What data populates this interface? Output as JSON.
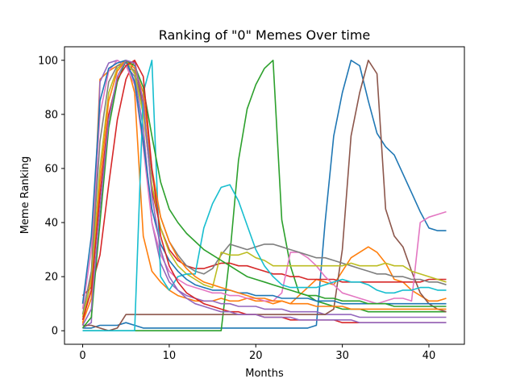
{
  "chart_data": {
    "type": "line",
    "title": "Ranking of \"0\" Memes Over time",
    "xlabel": "Months",
    "ylabel": "Meme Ranking",
    "xlim": [
      -2.1,
      44.1
    ],
    "ylim": [
      -5,
      105
    ],
    "xticks": [
      0,
      10,
      20,
      30,
      40
    ],
    "yticks": [
      0,
      20,
      40,
      60,
      80,
      100
    ],
    "grid": false,
    "legend": "none",
    "series_colors": [
      "#1f77b4",
      "#ff7f0e",
      "#2ca02c",
      "#d62728",
      "#9467bd",
      "#8c564b",
      "#e377c2",
      "#7f7f7f",
      "#bcbd22",
      "#17becf"
    ],
    "x": [
      0,
      1,
      2,
      3,
      4,
      5,
      6,
      7,
      8,
      9,
      10,
      11,
      12,
      13,
      14,
      15,
      16,
      17,
      18,
      19,
      20,
      21,
      22,
      23,
      24,
      25,
      26,
      27,
      28,
      29,
      30,
      31,
      32,
      33,
      34,
      35,
      36,
      37,
      38,
      39,
      40,
      41,
      42
    ],
    "series": [
      {
        "values": [
          1,
          1,
          2,
          2,
          2,
          3,
          2,
          1,
          1,
          1,
          1,
          1,
          1,
          1,
          1,
          1,
          1,
          1,
          1,
          1,
          1,
          1,
          1,
          1,
          1,
          1,
          1,
          2,
          40,
          72,
          88,
          100,
          98,
          85,
          73,
          68,
          65,
          58,
          51,
          44,
          38,
          37,
          37
        ]
      },
      {
        "values": [
          2,
          20,
          93,
          96,
          98,
          100,
          88,
          35,
          22,
          18,
          15,
          13,
          12,
          11,
          11,
          11,
          12,
          11,
          11,
          12,
          11,
          11,
          10,
          11,
          10,
          13,
          16,
          19,
          18,
          17,
          22,
          27,
          29,
          31,
          29,
          25,
          19,
          18,
          15,
          13,
          11,
          11,
          12
        ]
      },
      {
        "values": [
          0,
          0,
          0,
          0,
          0,
          0,
          0,
          0,
          0,
          0,
          0,
          0,
          0,
          0,
          0,
          0,
          0,
          28,
          63,
          82,
          91,
          97,
          100,
          41,
          24,
          14,
          13,
          11,
          10,
          9,
          8,
          8,
          8,
          7,
          7,
          7,
          7,
          7,
          7,
          7,
          7,
          7,
          7
        ]
      },
      {
        "values": [
          13,
          16,
          28,
          54,
          78,
          93,
          100,
          82,
          52,
          38,
          30,
          26,
          24,
          23,
          23,
          24,
          25,
          25,
          24,
          24,
          23,
          22,
          21,
          21,
          20,
          20,
          19,
          19,
          19,
          19,
          18,
          18,
          18,
          18,
          18,
          18,
          18,
          18,
          18,
          18,
          19,
          19,
          19
        ]
      },
      {
        "values": [
          1,
          3,
          92,
          99,
          100,
          98,
          94,
          75,
          40,
          25,
          18,
          15,
          13,
          12,
          11,
          11,
          10,
          10,
          9,
          9,
          9,
          8,
          8,
          8,
          7,
          7,
          7,
          7,
          6,
          6,
          6,
          6,
          5,
          5,
          5,
          5,
          5,
          5,
          5,
          5,
          5,
          5,
          5
        ]
      },
      {
        "values": [
          2,
          2,
          1,
          0,
          1,
          6,
          6,
          6,
          6,
          6,
          6,
          6,
          6,
          6,
          6,
          6,
          6,
          6,
          6,
          6,
          6,
          6,
          6,
          6,
          6,
          6,
          6,
          6,
          6,
          8,
          30,
          72,
          88,
          100,
          95,
          45,
          35,
          31,
          22,
          14,
          10,
          8,
          7
        ]
      },
      {
        "values": [
          8,
          30,
          80,
          96,
          100,
          98,
          91,
          68,
          40,
          28,
          22,
          19,
          17,
          16,
          15,
          14,
          14,
          13,
          13,
          12,
          12,
          11,
          11,
          14,
          29,
          29,
          27,
          24,
          20,
          17,
          14,
          13,
          12,
          11,
          10,
          11,
          12,
          12,
          11,
          40,
          42,
          43,
          44
        ]
      },
      {
        "values": [
          6,
          22,
          70,
          92,
          98,
          99,
          96,
          82,
          58,
          42,
          33,
          28,
          24,
          22,
          21,
          23,
          28,
          32,
          31,
          30,
          31,
          32,
          32,
          31,
          30,
          29,
          28,
          27,
          27,
          26,
          25,
          24,
          23,
          22,
          21,
          21,
          20,
          20,
          19,
          19,
          18,
          18,
          17
        ]
      },
      {
        "values": [
          5,
          18,
          60,
          88,
          97,
          100,
          95,
          80,
          54,
          38,
          29,
          24,
          21,
          19,
          17,
          16,
          29,
          28,
          28,
          29,
          27,
          26,
          24,
          24,
          24,
          24,
          24,
          24,
          24,
          24,
          24,
          25,
          24,
          24,
          24,
          25,
          24,
          24,
          22,
          21,
          20,
          19,
          18
        ]
      },
      {
        "values": [
          0,
          0,
          0,
          0,
          0,
          0,
          0,
          88,
          100,
          20,
          15,
          20,
          21,
          21,
          38,
          47,
          53,
          54,
          48,
          39,
          30,
          24,
          20,
          17,
          16,
          16,
          16,
          16,
          17,
          18,
          19,
          18,
          18,
          17,
          15,
          14,
          14,
          15,
          15,
          16,
          16,
          15,
          15
        ]
      },
      {
        "values": [
          10,
          35,
          85,
          97,
          99,
          100,
          92,
          70,
          45,
          32,
          26,
          22,
          19,
          17,
          16,
          15,
          15,
          15,
          14,
          14,
          13,
          13,
          13,
          12,
          12,
          12,
          12,
          11,
          11,
          11,
          10,
          10,
          10,
          10,
          10,
          10,
          10,
          10,
          10,
          10,
          10,
          10,
          10
        ]
      },
      {
        "values": [
          3,
          12,
          55,
          85,
          96,
          100,
          97,
          88,
          60,
          42,
          33,
          27,
          23,
          20,
          18,
          17,
          16,
          15,
          14,
          13,
          12,
          12,
          11,
          11,
          10,
          10,
          10,
          9,
          9,
          9,
          9,
          8,
          8,
          8,
          8,
          8,
          8,
          8,
          8,
          8,
          8,
          8,
          8
        ]
      },
      {
        "values": [
          1,
          5,
          40,
          75,
          92,
          100,
          98,
          90,
          72,
          55,
          45,
          40,
          36,
          33,
          30,
          28,
          26,
          24,
          22,
          20,
          19,
          18,
          17,
          16,
          15,
          14,
          13,
          13,
          12,
          12,
          11,
          11,
          11,
          10,
          10,
          10,
          9,
          9,
          9,
          9,
          9,
          9,
          9
        ]
      },
      {
        "values": [
          4,
          15,
          50,
          80,
          93,
          98,
          100,
          94,
          60,
          35,
          24,
          18,
          14,
          12,
          10,
          9,
          8,
          7,
          7,
          6,
          6,
          5,
          5,
          5,
          4,
          4,
          4,
          4,
          4,
          4,
          3,
          3,
          3,
          3,
          3,
          3,
          3,
          3,
          3,
          3,
          3,
          3,
          3
        ]
      },
      {
        "values": [
          2,
          8,
          45,
          78,
          94,
          100,
          99,
          85,
          50,
          30,
          20,
          15,
          12,
          10,
          9,
          8,
          7,
          7,
          6,
          6,
          6,
          5,
          5,
          5,
          5,
          4,
          4,
          4,
          4,
          4,
          4,
          4,
          3,
          3,
          3,
          3,
          3,
          3,
          3,
          3,
          3,
          3,
          3
        ]
      }
    ]
  }
}
